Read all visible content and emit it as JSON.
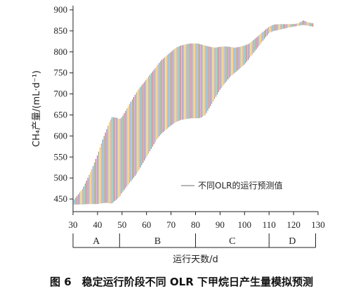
{
  "caption": "图 6　稳定运行阶段不同 OLR 下甲烷日产生量模拟预测",
  "chart_data": {
    "type": "range",
    "xlabel": "运行天数/d",
    "ylabel": "CH₄产量/(mL·d⁻¹)",
    "xlim": [
      30,
      130
    ],
    "ylim": [
      420,
      910
    ],
    "xticks": [
      30,
      40,
      50,
      60,
      70,
      80,
      90,
      100,
      110,
      120,
      130
    ],
    "yticks": [
      450,
      500,
      550,
      600,
      650,
      700,
      750,
      800,
      850,
      900
    ],
    "legend": {
      "label": "不同OLR的运行预测值",
      "position": "lower-right"
    },
    "stages": [
      {
        "label": "A",
        "start": 30,
        "end": 49
      },
      {
        "label": "B",
        "start": 49,
        "end": 80
      },
      {
        "label": "C",
        "start": 80,
        "end": 110
      },
      {
        "label": "D",
        "start": 110,
        "end": 129
      }
    ],
    "line_colors": [
      "#e67e22",
      "#3b6fd6",
      "#2e9e4f",
      "#c0392b",
      "#8e44ad",
      "#7f8c8d",
      "#d4ac0d"
    ],
    "series": [
      {
        "day": [
          30,
          32,
          34,
          36,
          38,
          40,
          42,
          44,
          45,
          46,
          48,
          49,
          50,
          52,
          54,
          56,
          58,
          60,
          62,
          64,
          66,
          68,
          70,
          72,
          74,
          76,
          78,
          80,
          81,
          82,
          84,
          86,
          88,
          90,
          92,
          94,
          96,
          98,
          100,
          102,
          104,
          106,
          108,
          110,
          112,
          114,
          116,
          118,
          120,
          122,
          124,
          126,
          128
        ],
        "lower": [
          437,
          437,
          437,
          438,
          438,
          438,
          440,
          441,
          439,
          440,
          450,
          455,
          465,
          480,
          495,
          510,
          530,
          550,
          570,
          590,
          605,
          615,
          625,
          633,
          638,
          640,
          642,
          642,
          642,
          643,
          650,
          670,
          690,
          710,
          725,
          740,
          750,
          760,
          770,
          785,
          800,
          815,
          830,
          845,
          850,
          852,
          855,
          858,
          860,
          862,
          864,
          862,
          860
        ],
        "upper": [
          445,
          460,
          475,
          500,
          525,
          555,
          590,
          620,
          635,
          645,
          643,
          640,
          645,
          665,
          685,
          705,
          720,
          735,
          750,
          765,
          780,
          790,
          800,
          810,
          815,
          818,
          820,
          820,
          820,
          818,
          815,
          812,
          810,
          812,
          813,
          812,
          810,
          812,
          815,
          820,
          830,
          840,
          850,
          860,
          865,
          866,
          866,
          866,
          866,
          868,
          875,
          870,
          868
        ]
      }
    ]
  }
}
